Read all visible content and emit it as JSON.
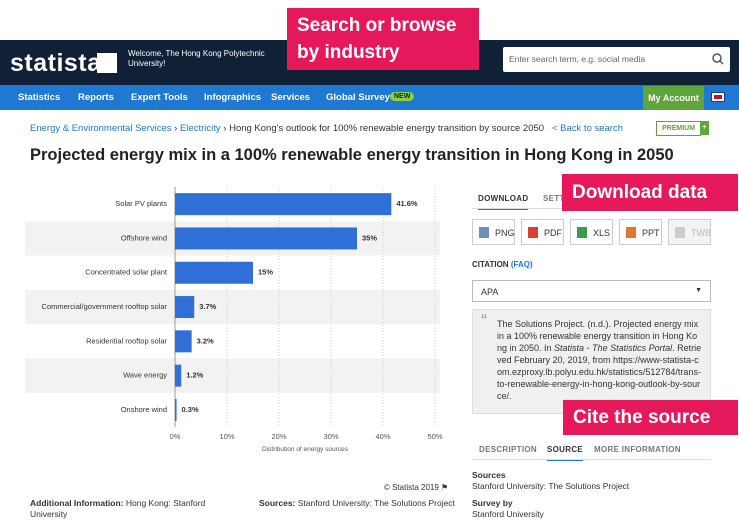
{
  "header": {
    "logo": "statista",
    "welcome": "Welcome, The Hong Kong Polytechnic University!",
    "search_placeholder": "Enter search term, e.g. social media"
  },
  "nav": {
    "items": [
      "Statistics",
      "Reports",
      "Expert Tools",
      "Infographics",
      "Services",
      "Global Survey"
    ],
    "badge": "NEW",
    "account": "My Account"
  },
  "breadcrumb": {
    "items": [
      "Energy & Environmental Services",
      "Electricity",
      "Hong Kong's outlook for 100% renewable energy transition by source 2050"
    ],
    "back": "< Back to search",
    "premium": "PREMIUM"
  },
  "page_title": "Projected energy mix in a 100% renewable energy transition in Hong Kong in 2050",
  "chart_data": {
    "type": "bar",
    "orientation": "horizontal",
    "x_label": "Distribution of energy sources",
    "categories": [
      "Solar PV plants",
      "Offshore wind",
      "Concentrated solar plant",
      "Commercial/government rooftop solar",
      "Residential rooftop solar",
      "Wave energy",
      "Onshore wind"
    ],
    "values": [
      41.6,
      35,
      15,
      3.7,
      3.2,
      1.2,
      0.3
    ],
    "value_labels": [
      "41.6%",
      "35%",
      "15%",
      "3.7%",
      "3.2%",
      "1.2%",
      "0.3%"
    ],
    "color": "#2f6fd6",
    "xlim": [
      0,
      50
    ],
    "xticks": [
      {
        "value": 0,
        "label": "0%"
      },
      {
        "value": 10,
        "label": "10%"
      },
      {
        "value": 20,
        "label": "20%"
      },
      {
        "value": 30,
        "label": "30%"
      },
      {
        "value": 40,
        "label": "40%"
      },
      {
        "value": 50,
        "label": "50%"
      }
    ],
    "grid": true
  },
  "copyright": "© Statista 2019",
  "download_tabs": [
    "DOWNLOAD",
    "SETTINGS"
  ],
  "download_buttons": [
    "PNG",
    "PDF",
    "XLS",
    "PPT",
    "TWB"
  ],
  "citation": {
    "label": "CITATION",
    "faq": "(FAQ)",
    "style": "APA",
    "text_before": "The Solutions Project. (n.d.). Projected energy mix in a 100% renewable energy transition in Hong Kong in 2050. In ",
    "text_italic": "Statista - The Statistics Portal",
    "text_after": ". Retrieved February 20, 2019, from https://www-statista-com.ezproxy.lb.polyu.edu.hk/statistics/512784/trans-to-renewable-energy-in-hong-kong-outlook-by-source/."
  },
  "info_tabs": [
    "DESCRIPTION",
    "SOURCE",
    "MORE INFORMATION"
  ],
  "source_panel": {
    "sources_label": "Sources",
    "sources": "Stanford University: The Solutions Project",
    "survey_label": "Survey by",
    "survey": "Stanford University"
  },
  "footer": {
    "additional_label": "Additional Information:",
    "additional": "Hong Kong: Stanford University",
    "sources_label": "Sources:",
    "sources": "Stanford University: The Solutions Project"
  },
  "callouts": {
    "search": "Search or browse by industry",
    "download": "Download data",
    "cite": "Cite the source"
  }
}
